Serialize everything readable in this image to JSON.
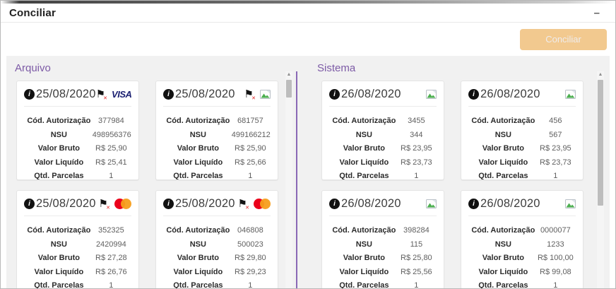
{
  "window": {
    "title": "Conciliar"
  },
  "actions": {
    "conciliar_label": "Conciliar"
  },
  "card_field_labels": [
    "Cód. Autorização",
    "NSU",
    "Valor Bruto",
    "Valor Liquído",
    "Qtd. Parcelas"
  ],
  "panels": [
    {
      "title": "Arquivo",
      "cards": [
        {
          "date": "25/08/2020",
          "flag": true,
          "brand": "visa",
          "values": [
            "377984",
            "498956376",
            "R$ 25,90",
            "R$ 25,41",
            "1"
          ]
        },
        {
          "date": "25/08/2020",
          "flag": true,
          "brand": "missing",
          "values": [
            "681757",
            "499166212",
            "R$ 25,90",
            "R$ 25,66",
            "1"
          ]
        },
        {
          "date": "25/08/2020",
          "flag": true,
          "brand": "mastercard",
          "values": [
            "352325",
            "2420994",
            "R$ 27,28",
            "R$ 26,76",
            "1"
          ]
        },
        {
          "date": "25/08/2020",
          "flag": true,
          "brand": "mastercard",
          "values": [
            "046808",
            "500023",
            "R$ 29,80",
            "R$ 29,23",
            "1"
          ]
        }
      ]
    },
    {
      "title": "Sistema",
      "cards": [
        {
          "date": "26/08/2020",
          "flag": false,
          "brand": "missing",
          "values": [
            "3455",
            "344",
            "R$ 23,95",
            "R$ 23,73",
            "1"
          ]
        },
        {
          "date": "26/08/2020",
          "flag": false,
          "brand": "missing",
          "values": [
            "456",
            "567",
            "R$ 23,95",
            "R$ 23,73",
            "1"
          ]
        },
        {
          "date": "26/08/2020",
          "flag": false,
          "brand": "missing",
          "values": [
            "398284",
            "115",
            "R$ 25,80",
            "R$ 25,56",
            "1"
          ]
        },
        {
          "date": "26/08/2020",
          "flag": false,
          "brand": "missing",
          "values": [
            "0000077",
            "1233",
            "R$ 100,00",
            "R$ 99,08",
            "1"
          ]
        }
      ]
    }
  ],
  "icons": {
    "collapse_glyph": "–",
    "info_glyph": "i",
    "flag_glyph": "⚑",
    "flag_x_glyph": "✕",
    "visa_text": "VISA",
    "scroll_up_glyph": "▲",
    "mastercard": "overlapping-circles",
    "missing_image": "broken-image-placeholder"
  },
  "colors": {
    "accent_purple": "#7d5ba6",
    "divider_purple": "#8a68b5",
    "button_orange": "#f2c98f",
    "visa_blue": "#1a1f71",
    "mastercard_red": "#eb001b",
    "mastercard_orange": "#f79e1b",
    "panel_bg": "#f1f1f1"
  }
}
